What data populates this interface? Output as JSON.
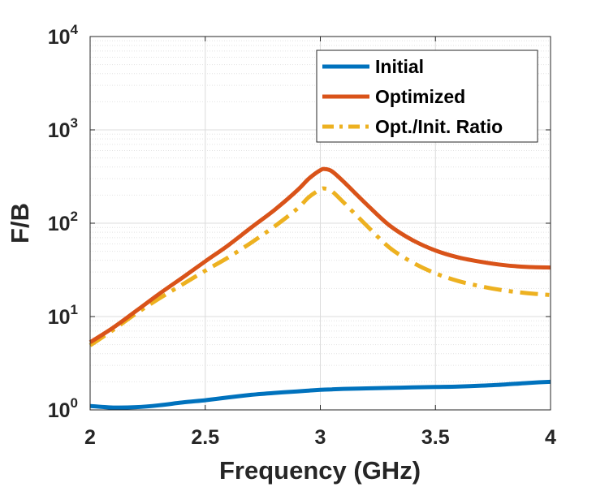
{
  "chart_data": {
    "type": "line",
    "title": "",
    "xlabel": "Frequency (GHz)",
    "ylabel": "F/B",
    "xlim": [
      2,
      4
    ],
    "ylim": [
      1,
      10000
    ],
    "yscale": "log",
    "xticks": [
      {
        "value": 2,
        "label": "2"
      },
      {
        "value": 2.5,
        "label": "2.5"
      },
      {
        "value": 3,
        "label": "3"
      },
      {
        "value": 3.5,
        "label": "3.5"
      },
      {
        "value": 4,
        "label": "4"
      }
    ],
    "yticks": [
      {
        "value": 1,
        "base": "10",
        "exp": "0"
      },
      {
        "value": 10,
        "base": "10",
        "exp": "1"
      },
      {
        "value": 100,
        "base": "10",
        "exp": "2"
      },
      {
        "value": 1000,
        "base": "10",
        "exp": "3"
      },
      {
        "value": 10000,
        "base": "10",
        "exp": "4"
      }
    ],
    "grid": true,
    "legend_position": "top-right",
    "x": [
      2.0,
      2.1,
      2.2,
      2.3,
      2.4,
      2.5,
      2.6,
      2.7,
      2.8,
      2.9,
      2.95,
      3.0,
      3.02,
      3.05,
      3.1,
      3.2,
      3.3,
      3.4,
      3.5,
      3.6,
      3.7,
      3.8,
      3.9,
      4.0
    ],
    "series": [
      {
        "name": "Initial",
        "color": "#0072BD",
        "dash": "solid",
        "values": [
          1.1,
          1.06,
          1.07,
          1.12,
          1.2,
          1.27,
          1.36,
          1.45,
          1.52,
          1.58,
          1.61,
          1.64,
          1.65,
          1.66,
          1.68,
          1.7,
          1.72,
          1.74,
          1.76,
          1.78,
          1.82,
          1.87,
          1.94,
          2.0
        ]
      },
      {
        "name": "Optimized",
        "color": "#D95319",
        "dash": "solid",
        "values": [
          5.3,
          7.6,
          11.5,
          17.5,
          26.0,
          39.0,
          58.0,
          90.0,
          138.0,
          225.0,
          300.0,
          370.0,
          380.0,
          360.0,
          280.0,
          160.0,
          95.0,
          66.0,
          51.0,
          43.0,
          38.5,
          35.5,
          34.0,
          33.5
        ]
      },
      {
        "name": "Opt./Init. Ratio",
        "color": "#EDB120",
        "dash": "dashed",
        "values": [
          4.9,
          7.2,
          10.8,
          15.6,
          22.0,
          31.0,
          43.0,
          62.0,
          92.0,
          143.0,
          190.0,
          230.0,
          235.0,
          220.0,
          168.0,
          95.0,
          55.0,
          38.0,
          29.0,
          24.0,
          21.0,
          19.0,
          17.8,
          17.0
        ]
      }
    ]
  }
}
